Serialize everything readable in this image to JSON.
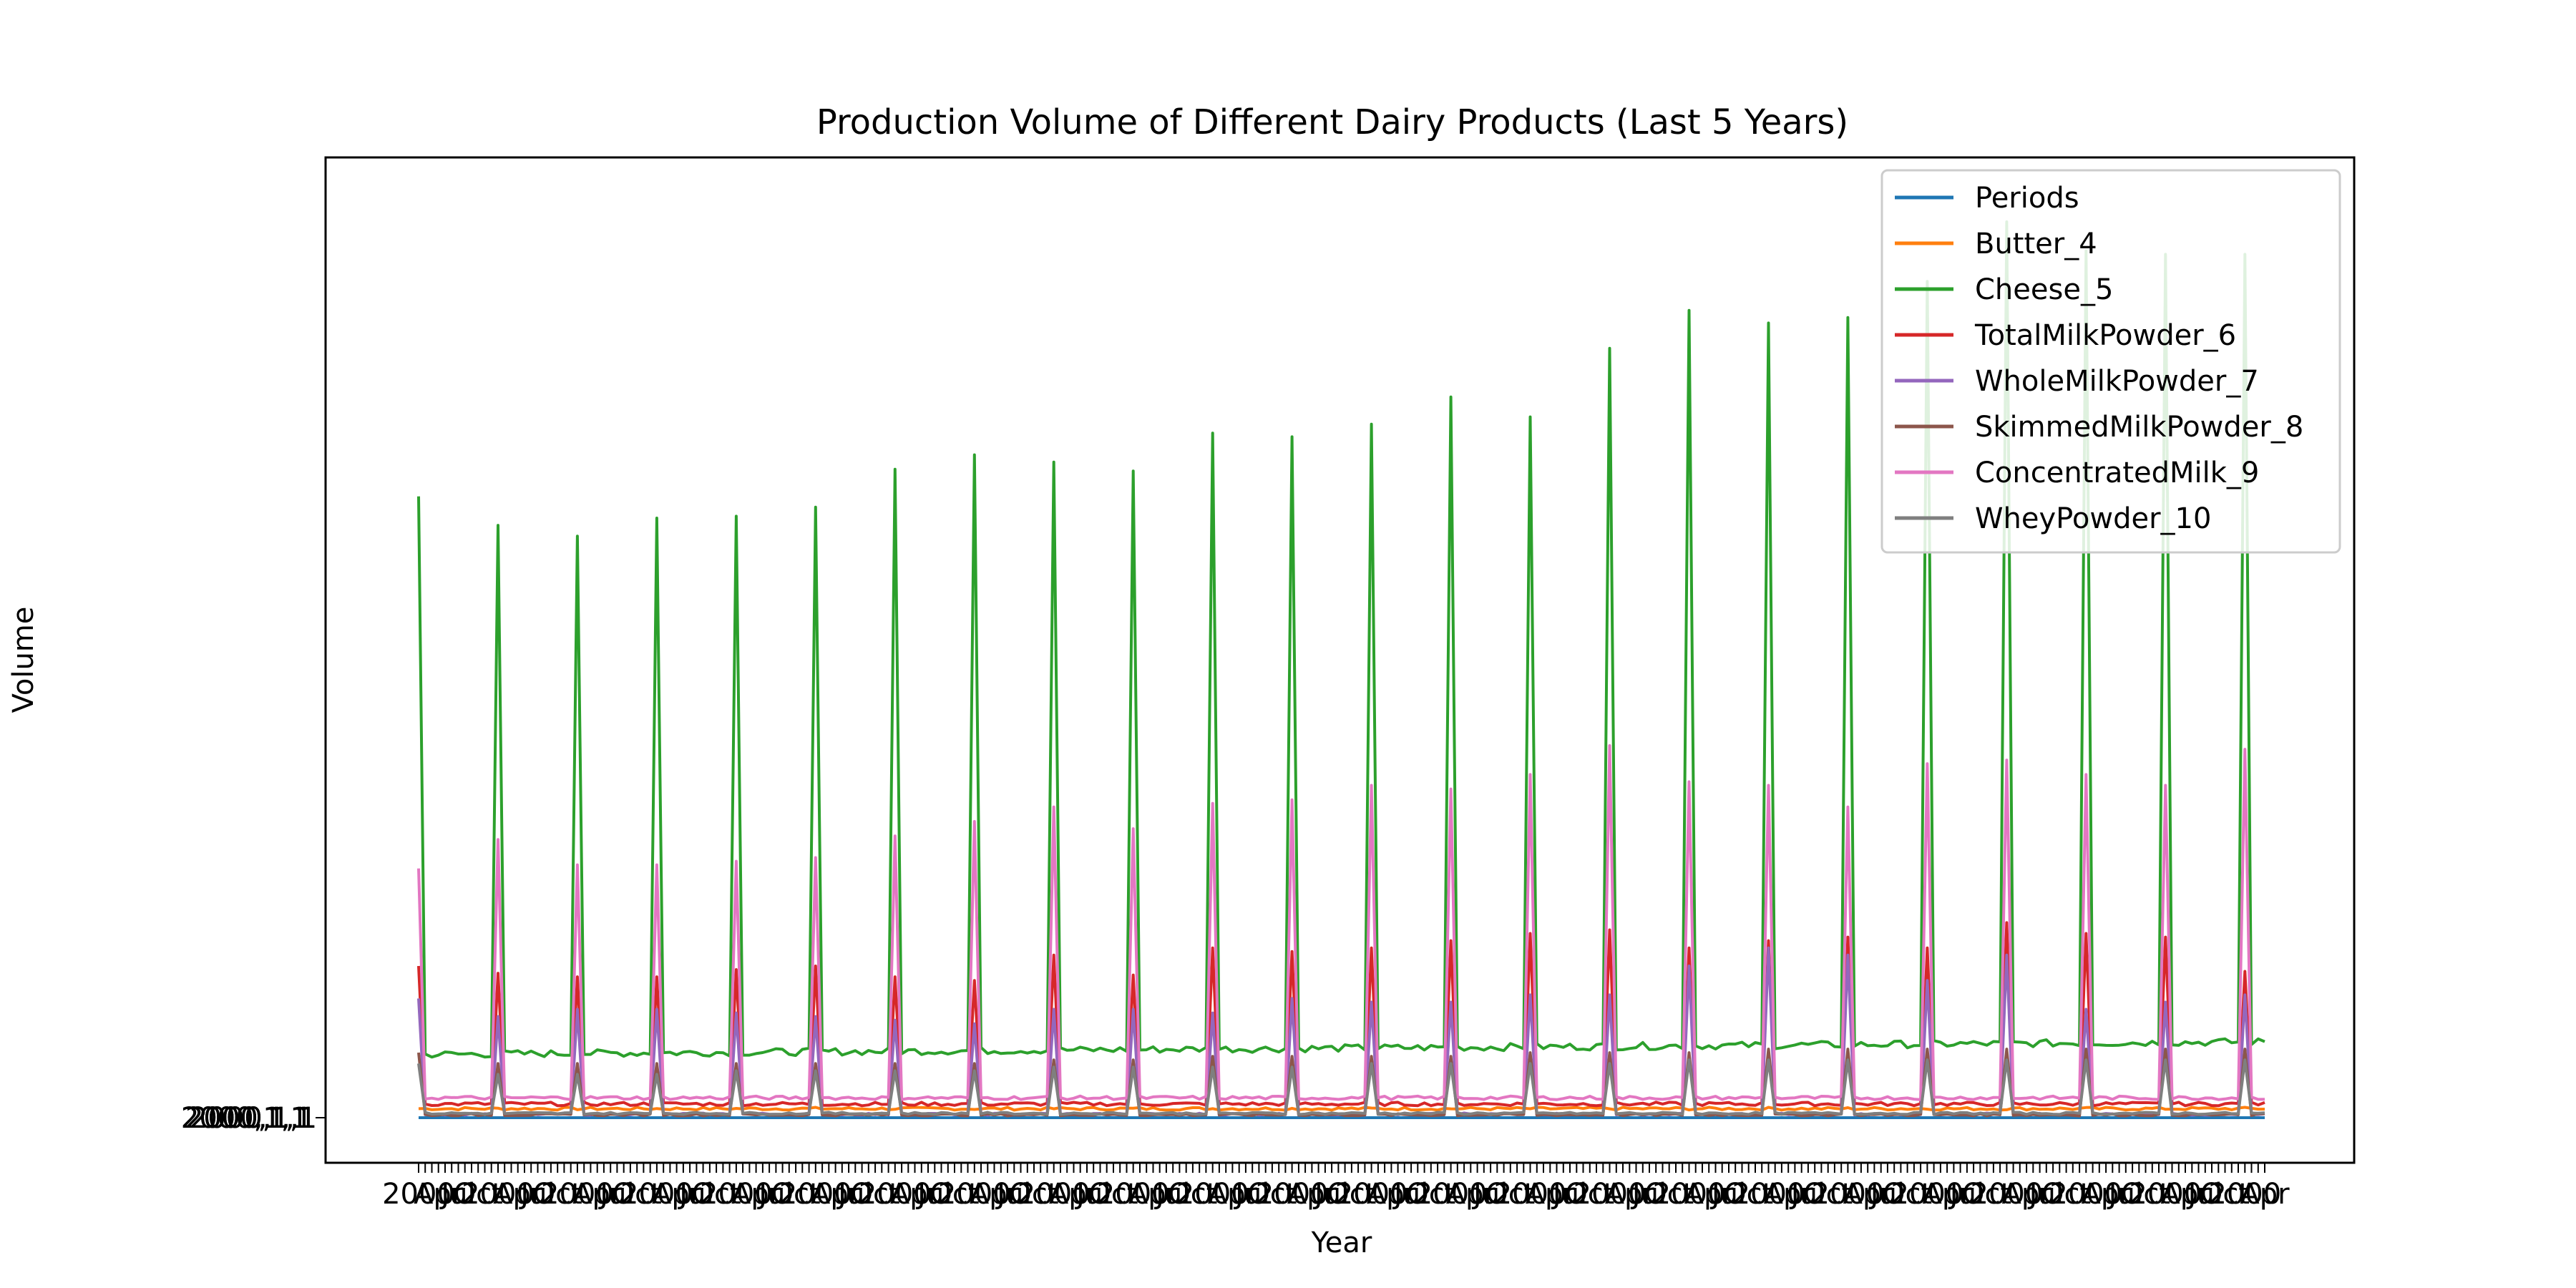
{
  "chart_data": {
    "type": "line",
    "title": "Production Volume of Different Dairy Products (Last 5 Years)",
    "xlabel": "Year",
    "ylabel": "Volume",
    "legend_position": "upper-right",
    "grid": false,
    "x_axis_note": "categorical axis with ~280 overlapping period labels (e.g. 2000 Jan ... 2024 Jul), rendered illegibly",
    "y_axis_note": "categorical string tick labels, all overlapping at the baseline (illegible)",
    "n_points": 280,
    "year_peak_every": 12,
    "ylim": [
      0,
      2550
    ],
    "series": [
      {
        "name": "Periods",
        "color": "#1f77b4",
        "base": 0,
        "noise": 0,
        "peaks": []
      },
      {
        "name": "Butter_4",
        "color": "#ff7f0e",
        "base": 25,
        "noise": 4,
        "peaks": []
      },
      {
        "name": "Cheese_5",
        "color": "#2ca02c",
        "base": 175,
        "base_end": 210,
        "noise": 10,
        "peaks": [
          1720,
          1640,
          1610,
          1660,
          1665,
          1690,
          1795,
          1835,
          1815,
          1790,
          1895,
          1885,
          1920,
          1995,
          1940,
          2130,
          2235,
          2200,
          2215,
          2315,
          2480,
          2400,
          2390,
          2390
        ]
      },
      {
        "name": "TotalMilkPowder_6",
        "color": "#d62728",
        "base": 38,
        "noise": 5,
        "peaks": [
          420,
          400,
          390,
          390,
          410,
          420,
          390,
          380,
          450,
          395,
          470,
          460,
          470,
          490,
          510,
          520,
          470,
          490,
          500,
          470,
          540,
          510,
          500,
          405
        ]
      },
      {
        "name": "WholeMilkPowder_7",
        "color": "#9467bd",
        "base": 10,
        "noise": 3,
        "peaks": [
          330,
          280,
          300,
          300,
          290,
          280,
          270,
          260,
          300,
          300,
          290,
          330,
          320,
          320,
          340,
          340,
          420,
          470,
          450,
          380,
          450,
          300,
          320,
          340
        ]
      },
      {
        "name": "SkimmedMilkPowder_8",
        "color": "#8c564b",
        "base": 8,
        "noise": 3,
        "peaks": [
          180,
          150,
          150,
          150,
          150,
          150,
          150,
          150,
          160,
          160,
          170,
          170,
          170,
          170,
          180,
          180,
          180,
          190,
          190,
          190,
          190,
          190,
          190,
          190
        ]
      },
      {
        "name": "ConcentratedMilk_9",
        "color": "#e377c2",
        "base": 55,
        "noise": 5,
        "peaks": [
          690,
          770,
          700,
          700,
          710,
          720,
          780,
          820,
          860,
          800,
          870,
          880,
          920,
          910,
          950,
          1030,
          930,
          920,
          860,
          980,
          990,
          950,
          920,
          1020
        ]
      },
      {
        "name": "WheyPowder_10",
        "color": "#7f7f7f",
        "base": 12,
        "noise": 3,
        "peaks": [
          150,
          120,
          120,
          120,
          130,
          130,
          130,
          130,
          140,
          140,
          140,
          140,
          150,
          150,
          150,
          150,
          160,
          160,
          160,
          160,
          160,
          160,
          160,
          160
        ]
      }
    ],
    "x_tick_label_samples": [
      "2000",
      "Jan",
      "Feb",
      "Mar",
      "Apr",
      "May",
      "Jun",
      "Jul",
      "Aug",
      "Sep",
      "Oct",
      "Nov",
      "Dec"
    ],
    "y_tick_label_sample": "2000,1,1"
  }
}
